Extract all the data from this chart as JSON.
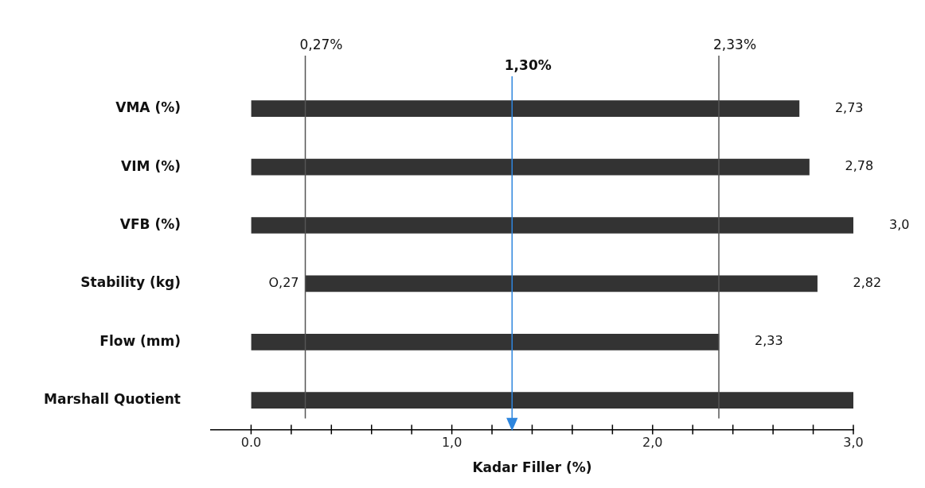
{
  "chart_data": {
    "type": "bar",
    "orientation": "horizontal",
    "xlabel": "Kadar Filler (%)",
    "categories": [
      "VMA (%)",
      "VIM (%)",
      "VFB (%)",
      "Stability (kg)",
      "Flow (mm)",
      "Marshall Quotient"
    ],
    "base": [
      0,
      0,
      0,
      0.27,
      0,
      0
    ],
    "values": [
      2.73,
      2.78,
      3.0,
      2.55,
      2.33,
      3.0
    ],
    "value_labels": [
      "2,73",
      "2,78",
      "3,0",
      "2,82",
      "2,33",
      null
    ],
    "color": "#333333",
    "xlim": [
      -0.2,
      3.0
    ],
    "xticks": [
      {
        "value": 0,
        "label": "0.0"
      },
      {
        "value": 0.2,
        "label": null
      },
      {
        "value": 0.4,
        "label": null
      },
      {
        "value": 0.6,
        "label": null
      },
      {
        "value": 0.8,
        "label": null
      },
      {
        "value": 1,
        "label": "1,0"
      },
      {
        "value": 1.2,
        "label": null
      },
      {
        "value": 1.4,
        "label": null
      },
      {
        "value": 1.6,
        "label": null
      },
      {
        "value": 1.8,
        "label": null
      },
      {
        "value": 2,
        "label": "2,0"
      },
      {
        "value": 2.2,
        "label": null
      },
      {
        "value": 2.4,
        "label": null
      },
      {
        "value": 2.6,
        "label": null
      },
      {
        "value": 2.8,
        "label": null
      },
      {
        "value": 3,
        "label": "3,0"
      }
    ],
    "ref_lines": [
      {
        "axis": "x",
        "value": 0.27,
        "label": "0,27%",
        "color": "#555555"
      },
      {
        "axis": "x",
        "value": 1.3,
        "label": "1,30%",
        "color": "#2e86de"
      },
      {
        "axis": "x",
        "value": 2.33,
        "label": "2,33%",
        "color": "#555555"
      }
    ],
    "annotations": [
      {
        "text": "O,27",
        "x": 0.27,
        "y": "Stability (kg)"
      }
    ],
    "grid": false,
    "legend": false
  }
}
